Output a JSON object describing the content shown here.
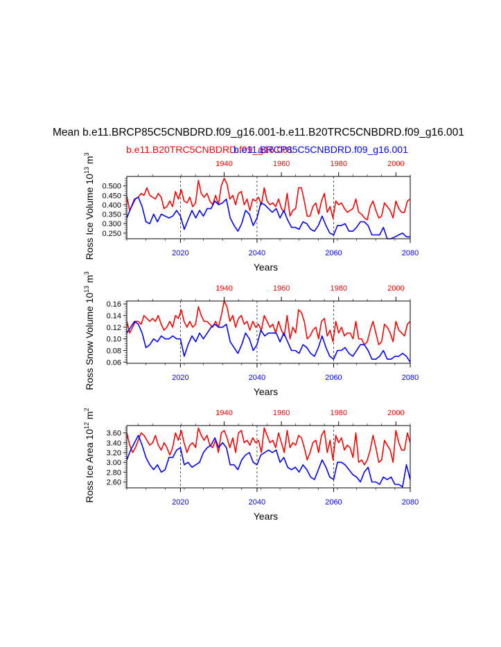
{
  "title": "Mean b.e11.BRCP85C5CNBDRD.f09_g16.001-b.e11.B20TRC5CNBDRD.f09_g16.001",
  "case_labels": {
    "historical": "b.e11.B20TRC5CNBDRD.f09_g16.001",
    "future": "b.e11.BRCP85C5CNBDRD.f09_g16.001"
  },
  "colors": {
    "historical": "#ff0000",
    "future": "#0000ff",
    "axis": "#000000"
  },
  "chart_data": [
    {
      "type": "line",
      "ylabel": "Ross Ice Volume 10^13 m^3",
      "ylabel_parts": {
        "base": "Ross Ice Volume 10",
        "exp1": "13",
        "mid": " m",
        "exp2": "3"
      },
      "xlabel": "Years",
      "ylim": [
        0.22,
        0.55
      ],
      "yticks": [
        0.25,
        0.3,
        0.35,
        0.4,
        0.45,
        0.5
      ],
      "ytick_labels": [
        "0.250",
        "0.300",
        "0.350",
        "0.400",
        "0.450",
        "0.500"
      ],
      "top_axis": {
        "range": [
          1906,
          2005
        ],
        "ticks": [
          1940,
          1960,
          1980,
          2000
        ],
        "tick_labels": [
          "1940",
          "1960",
          "1980",
          "2000"
        ]
      },
      "bottom_axis": {
        "range": [
          2006,
          2080
        ],
        "ticks": [
          2020,
          2040,
          2060,
          2080
        ],
        "tick_labels": [
          "2020",
          "2040",
          "2060",
          "2080"
        ]
      },
      "vlines": [
        2020,
        2040,
        2060
      ],
      "series": [
        {
          "name": "b.e11.B20TRC5CNBDRD.f09_g16.001",
          "axis": "top",
          "x_start": 1906,
          "values": [
            0.445,
            0.37,
            0.4,
            0.43,
            0.44,
            0.46,
            0.45,
            0.49,
            0.45,
            0.44,
            0.43,
            0.46,
            0.44,
            0.38,
            0.39,
            0.42,
            0.39,
            0.47,
            0.43,
            0.48,
            0.42,
            0.41,
            0.44,
            0.39,
            0.41,
            0.53,
            0.46,
            0.44,
            0.46,
            0.42,
            0.4,
            0.45,
            0.4,
            0.5,
            0.54,
            0.51,
            0.43,
            0.45,
            0.4,
            0.46,
            0.47,
            0.4,
            0.43,
            0.37,
            0.43,
            0.42,
            0.44,
            0.4,
            0.49,
            0.42,
            0.4,
            0.41,
            0.39,
            0.43,
            0.38,
            0.36,
            0.46,
            0.34,
            0.37,
            0.38,
            0.49,
            0.49,
            0.42,
            0.34,
            0.34,
            0.39,
            0.41,
            0.35,
            0.42,
            0.46,
            0.36,
            0.39,
            0.33,
            0.42,
            0.4,
            0.41,
            0.38,
            0.36,
            0.37,
            0.38,
            0.43,
            0.36,
            0.35,
            0.33,
            0.32,
            0.39,
            0.42,
            0.37,
            0.33,
            0.34,
            0.41,
            0.39,
            0.37,
            0.33,
            0.42,
            0.38,
            0.36,
            0.36,
            0.42,
            0.43
          ]
        },
        {
          "name": "b.e11.BRCP85C5CNBDRD.f09_g16.001",
          "axis": "bottom",
          "x_start": 2006,
          "values": [
            0.33,
            0.38,
            0.43,
            0.44,
            0.39,
            0.31,
            0.3,
            0.35,
            0.31,
            0.35,
            0.34,
            0.33,
            0.34,
            0.37,
            0.34,
            0.27,
            0.32,
            0.37,
            0.33,
            0.37,
            0.34,
            0.38,
            0.38,
            0.42,
            0.4,
            0.41,
            0.43,
            0.33,
            0.29,
            0.26,
            0.3,
            0.37,
            0.35,
            0.29,
            0.33,
            0.41,
            0.4,
            0.38,
            0.36,
            0.38,
            0.33,
            0.37,
            0.32,
            0.28,
            0.28,
            0.27,
            0.31,
            0.3,
            0.27,
            0.26,
            0.29,
            0.34,
            0.29,
            0.25,
            0.24,
            0.29,
            0.29,
            0.3,
            0.26,
            0.26,
            0.28,
            0.31,
            0.31,
            0.29,
            0.24,
            0.24,
            0.24,
            0.28,
            0.2,
            0.22,
            0.23,
            0.24,
            0.25,
            0.23,
            0.23
          ]
        }
      ]
    },
    {
      "type": "line",
      "ylabel": "Ross Snow Volume 10^13 m^3",
      "ylabel_parts": {
        "base": "Ross Snow Volume 10",
        "exp1": "13",
        "mid": " m",
        "exp2": "3"
      },
      "xlabel": "Years",
      "ylim": [
        0.058,
        0.165
      ],
      "yticks": [
        0.06,
        0.08,
        0.1,
        0.12,
        0.14,
        0.16
      ],
      "ytick_labels": [
        "0.06",
        "0.08",
        "0.10",
        "0.12",
        "0.14",
        "0.16"
      ],
      "top_axis": {
        "range": [
          1906,
          2005
        ],
        "ticks": [
          1940,
          1960,
          1980,
          2000
        ],
        "tick_labels": [
          "1940",
          "1960",
          "1980",
          "2000"
        ]
      },
      "bottom_axis": {
        "range": [
          2006,
          2080
        ],
        "ticks": [
          2020,
          2040,
          2060,
          2080
        ],
        "tick_labels": [
          "2020",
          "2040",
          "2060",
          "2080"
        ]
      },
      "vlines": [
        2020,
        2040,
        2060
      ],
      "series": [
        {
          "name": "b.e11.B20TRC5CNBDRD.f09_g16.001",
          "axis": "top",
          "x_start": 1906,
          "values": [
            0.13,
            0.11,
            0.12,
            0.13,
            0.13,
            0.125,
            0.14,
            0.135,
            0.13,
            0.135,
            0.13,
            0.14,
            0.125,
            0.115,
            0.12,
            0.13,
            0.12,
            0.14,
            0.135,
            0.15,
            0.13,
            0.12,
            0.13,
            0.12,
            0.125,
            0.155,
            0.14,
            0.13,
            0.13,
            0.125,
            0.12,
            0.13,
            0.12,
            0.14,
            0.165,
            0.155,
            0.13,
            0.14,
            0.12,
            0.135,
            0.14,
            0.125,
            0.13,
            0.115,
            0.13,
            0.12,
            0.125,
            0.115,
            0.14,
            0.13,
            0.12,
            0.125,
            0.11,
            0.13,
            0.115,
            0.105,
            0.14,
            0.1,
            0.12,
            0.11,
            0.15,
            0.145,
            0.13,
            0.1,
            0.105,
            0.115,
            0.12,
            0.1,
            0.13,
            0.135,
            0.105,
            0.115,
            0.095,
            0.13,
            0.11,
            0.12,
            0.105,
            0.11,
            0.11,
            0.1,
            0.13,
            0.1,
            0.1,
            0.09,
            0.095,
            0.115,
            0.13,
            0.11,
            0.09,
            0.095,
            0.125,
            0.12,
            0.11,
            0.095,
            0.13,
            0.115,
            0.11,
            0.105,
            0.125,
            0.13
          ]
        },
        {
          "name": "b.e11.BRCP85C5CNBDRD.f09_g16.001",
          "axis": "bottom",
          "x_start": 2006,
          "values": [
            0.11,
            0.12,
            0.13,
            0.125,
            0.11,
            0.085,
            0.09,
            0.1,
            0.095,
            0.105,
            0.1,
            0.1,
            0.105,
            0.1,
            0.1,
            0.07,
            0.09,
            0.105,
            0.095,
            0.11,
            0.1,
            0.11,
            0.12,
            0.125,
            0.12,
            0.12,
            0.125,
            0.095,
            0.085,
            0.075,
            0.09,
            0.11,
            0.1,
            0.08,
            0.09,
            0.115,
            0.105,
            0.11,
            0.11,
            0.11,
            0.095,
            0.11,
            0.095,
            0.08,
            0.08,
            0.075,
            0.09,
            0.085,
            0.075,
            0.07,
            0.085,
            0.105,
            0.085,
            0.07,
            0.065,
            0.08,
            0.08,
            0.085,
            0.075,
            0.07,
            0.08,
            0.09,
            0.09,
            0.08,
            0.065,
            0.065,
            0.07,
            0.08,
            0.065,
            0.065,
            0.07,
            0.07,
            0.075,
            0.07,
            0.06
          ]
        }
      ]
    },
    {
      "type": "line",
      "ylabel": "Ross Ice Area 10^12 m^2",
      "ylabel_parts": {
        "base": "Ross Ice Area 10",
        "exp1": "12",
        "mid": " m",
        "exp2": "2"
      },
      "xlabel": "Years",
      "ylim": [
        2.48,
        3.75
      ],
      "yticks": [
        2.6,
        2.8,
        3.0,
        3.2,
        3.4,
        3.6
      ],
      "ytick_labels": [
        "2.60",
        "2.80",
        "3.00",
        "3.20",
        "3.40",
        "3.60"
      ],
      "top_axis": {
        "range": [
          1906,
          2005
        ],
        "ticks": [
          1940,
          1960,
          1980,
          2000
        ],
        "tick_labels": [
          "1940",
          "1960",
          "1980",
          "2000"
        ]
      },
      "bottom_axis": {
        "range": [
          2006,
          2080
        ],
        "ticks": [
          2020,
          2040,
          2060,
          2080
        ],
        "tick_labels": [
          "2020",
          "2040",
          "2060",
          "2080"
        ]
      },
      "vlines": [
        2020,
        2040,
        2060
      ],
      "series": [
        {
          "name": "b.e11.B20TRC5CNBDRD.f09_g16.001",
          "axis": "top",
          "x_start": 1906,
          "values": [
            3.6,
            3.35,
            3.2,
            3.3,
            3.45,
            3.6,
            3.55,
            3.45,
            3.35,
            3.4,
            3.55,
            3.35,
            3.25,
            3.4,
            3.3,
            3.15,
            3.3,
            3.6,
            3.45,
            3.65,
            3.4,
            3.2,
            3.35,
            3.4,
            3.3,
            3.7,
            3.55,
            3.45,
            3.55,
            3.35,
            3.3,
            3.45,
            3.2,
            3.6,
            3.65,
            3.5,
            3.3,
            3.5,
            3.2,
            3.6,
            3.65,
            3.4,
            3.45,
            3.35,
            3.5,
            3.4,
            3.45,
            3.2,
            3.7,
            3.55,
            3.4,
            3.45,
            3.3,
            3.6,
            3.4,
            3.2,
            3.65,
            3.3,
            3.4,
            3.35,
            3.55,
            3.5,
            3.3,
            3.05,
            3.2,
            3.4,
            3.45,
            3.2,
            3.55,
            3.65,
            3.2,
            3.45,
            3.05,
            3.55,
            3.4,
            3.5,
            3.25,
            3.35,
            3.3,
            3.1,
            3.6,
            3.0,
            3.05,
            2.95,
            3.05,
            3.25,
            3.55,
            3.3,
            3.0,
            3.05,
            3.45,
            3.35,
            3.25,
            3.0,
            3.65,
            3.4,
            3.25,
            3.25,
            3.6,
            3.4
          ]
        },
        {
          "name": "b.e11.BRCP85C5CNBDRD.f09_g16.001",
          "axis": "bottom",
          "x_start": 2006,
          "values": [
            3.05,
            3.25,
            3.4,
            3.55,
            3.35,
            3.1,
            2.95,
            2.85,
            2.95,
            2.8,
            2.85,
            3.1,
            3.1,
            3.25,
            3.3,
            2.95,
            3.0,
            2.9,
            2.95,
            3.0,
            3.2,
            3.3,
            3.35,
            3.5,
            3.3,
            3.4,
            3.3,
            2.95,
            2.95,
            2.85,
            3.05,
            3.15,
            3.2,
            3.0,
            2.95,
            3.15,
            3.2,
            3.25,
            3.2,
            3.25,
            3.0,
            3.1,
            2.9,
            2.85,
            2.9,
            2.8,
            2.95,
            2.85,
            2.7,
            2.65,
            2.85,
            3.05,
            2.9,
            2.7,
            2.65,
            3.0,
            3.0,
            2.95,
            2.85,
            2.75,
            2.7,
            2.6,
            2.8,
            2.9,
            2.6,
            2.6,
            2.55,
            2.7,
            2.65,
            2.7,
            2.55,
            2.55,
            2.5,
            2.95,
            2.65
          ]
        }
      ]
    }
  ]
}
